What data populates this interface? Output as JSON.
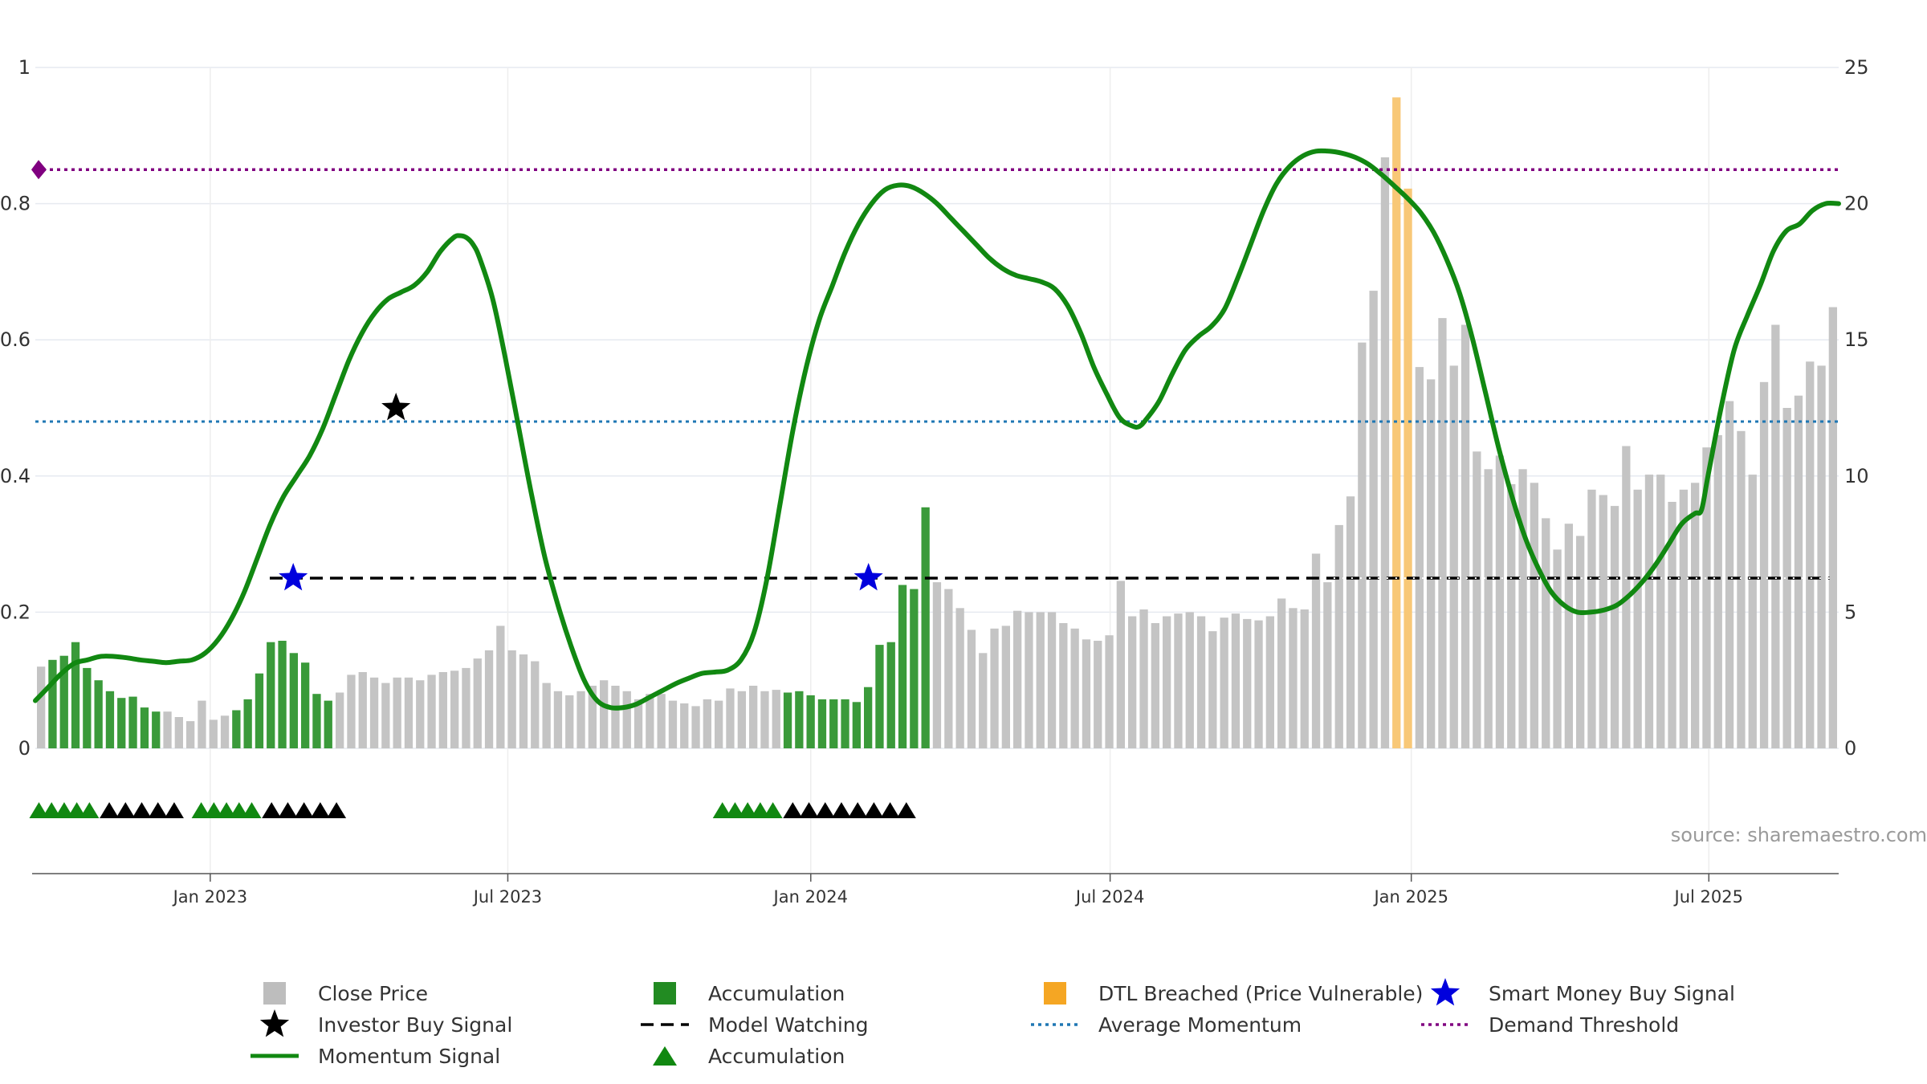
{
  "chart_data": {
    "type": "bar+line",
    "title": "",
    "source": "source: sharemaestro.com",
    "left_axis": {
      "min": 0,
      "max": 1,
      "ticks": [
        "0",
        "0.2",
        "0.4",
        "0.6",
        "0.8",
        "1"
      ]
    },
    "right_axis": {
      "min": 0,
      "max": 25,
      "ticks": [
        "0",
        "5",
        "10",
        "15",
        "20",
        "25"
      ]
    },
    "x_axis": {
      "ticks": [
        "Jan 2023",
        "Jul 2023",
        "Jan 2024",
        "Jul 2024",
        "Jan 2025",
        "Jul 2025"
      ]
    },
    "close_price": [
      3.0,
      3.25,
      3.4,
      3.9,
      2.95,
      2.5,
      2.1,
      1.85,
      1.9,
      1.5,
      1.35,
      1.35,
      1.15,
      1.0,
      1.75,
      1.05,
      1.2,
      1.4,
      1.8,
      2.75,
      3.9,
      3.95,
      3.5,
      3.15,
      2.0,
      1.75,
      2.05,
      2.7,
      2.8,
      2.6,
      2.4,
      2.6,
      2.6,
      2.5,
      2.7,
      2.8,
      2.85,
      2.95,
      3.3,
      3.6,
      4.5,
      3.6,
      3.45,
      3.2,
      2.4,
      2.1,
      1.95,
      2.1,
      2.3,
      2.5,
      2.3,
      2.1,
      1.8,
      2.0,
      2.0,
      1.75,
      1.65,
      1.55,
      1.8,
      1.75,
      2.2,
      2.1,
      2.3,
      2.1,
      2.15,
      2.05,
      2.1,
      1.95,
      1.8,
      1.8,
      1.8,
      1.7,
      2.25,
      3.8,
      3.9,
      6.0,
      5.85,
      8.85,
      6.1,
      5.85,
      5.15,
      4.35,
      3.5,
      4.4,
      4.5,
      5.05,
      5.0,
      5.0,
      5.0,
      4.6,
      4.4,
      4.0,
      3.95,
      4.15,
      6.15,
      4.85,
      5.1,
      4.6,
      4.85,
      4.95,
      5.0,
      4.85,
      4.3,
      4.8,
      4.95,
      4.75,
      4.7,
      4.85,
      5.5,
      5.15,
      5.1,
      7.15,
      6.1,
      8.2,
      9.25,
      14.9,
      16.8,
      21.7,
      23.9,
      20.55,
      14.0,
      13.55,
      15.8,
      14.05,
      15.55,
      10.9,
      10.25,
      10.75,
      9.7,
      10.25,
      9.75,
      8.45,
      7.3,
      8.25,
      7.8,
      9.5,
      9.3,
      8.9,
      11.1,
      9.5,
      10.05,
      10.05,
      9.05,
      9.5,
      9.75,
      11.05,
      11.5,
      12.75,
      11.65,
      10.05,
      13.45,
      15.55,
      12.5,
      12.95,
      14.2,
      14.05,
      16.2
    ],
    "accumulation_bar_ranges": [
      [
        1,
        10
      ],
      [
        17,
        25
      ],
      [
        65,
        77
      ]
    ],
    "dtl_breached_bar_ranges": [
      [
        118,
        119
      ]
    ],
    "momentum_signal": [
      [
        0,
        0.07
      ],
      [
        2,
        0.09
      ],
      [
        4,
        0.11
      ],
      [
        6,
        0.125
      ],
      [
        8,
        0.13
      ],
      [
        10,
        0.135
      ],
      [
        12,
        0.135
      ],
      [
        14,
        0.133
      ],
      [
        16,
        0.13
      ],
      [
        18,
        0.128
      ],
      [
        20,
        0.126
      ],
      [
        22,
        0.128
      ],
      [
        24,
        0.13
      ],
      [
        26,
        0.14
      ],
      [
        28,
        0.16
      ],
      [
        30,
        0.19
      ],
      [
        32,
        0.23
      ],
      [
        34,
        0.28
      ],
      [
        36,
        0.33
      ],
      [
        38,
        0.37
      ],
      [
        40,
        0.4
      ],
      [
        42,
        0.43
      ],
      [
        44,
        0.47
      ],
      [
        46,
        0.52
      ],
      [
        48,
        0.57
      ],
      [
        50,
        0.61
      ],
      [
        52,
        0.64
      ],
      [
        54,
        0.66
      ],
      [
        56,
        0.67
      ],
      [
        58,
        0.68
      ],
      [
        60,
        0.7
      ],
      [
        62,
        0.73
      ],
      [
        64,
        0.75
      ],
      [
        65,
        0.753
      ],
      [
        66,
        0.75
      ],
      [
        67,
        0.74
      ],
      [
        68,
        0.72
      ],
      [
        70,
        0.66
      ],
      [
        72,
        0.57
      ],
      [
        74,
        0.47
      ],
      [
        76,
        0.37
      ],
      [
        78,
        0.28
      ],
      [
        80,
        0.21
      ],
      [
        82,
        0.15
      ],
      [
        84,
        0.1
      ],
      [
        86,
        0.07
      ],
      [
        88,
        0.06
      ],
      [
        90,
        0.06
      ],
      [
        92,
        0.065
      ],
      [
        94,
        0.075
      ],
      [
        96,
        0.085
      ],
      [
        98,
        0.095
      ],
      [
        100,
        0.103
      ],
      [
        102,
        0.11
      ],
      [
        104,
        0.112
      ],
      [
        106,
        0.115
      ],
      [
        108,
        0.13
      ],
      [
        110,
        0.17
      ],
      [
        112,
        0.25
      ],
      [
        114,
        0.36
      ],
      [
        116,
        0.47
      ],
      [
        118,
        0.56
      ],
      [
        120,
        0.63
      ],
      [
        122,
        0.68
      ],
      [
        124,
        0.73
      ],
      [
        126,
        0.77
      ],
      [
        128,
        0.8
      ],
      [
        130,
        0.82
      ],
      [
        132,
        0.827
      ],
      [
        134,
        0.825
      ],
      [
        136,
        0.815
      ],
      [
        138,
        0.8
      ],
      [
        140,
        0.78
      ],
      [
        142,
        0.76
      ],
      [
        144,
        0.74
      ],
      [
        146,
        0.72
      ],
      [
        148,
        0.705
      ],
      [
        150,
        0.695
      ],
      [
        152,
        0.69
      ],
      [
        154,
        0.685
      ],
      [
        156,
        0.675
      ],
      [
        158,
        0.65
      ],
      [
        160,
        0.61
      ],
      [
        162,
        0.56
      ],
      [
        164,
        0.52
      ],
      [
        166,
        0.485
      ],
      [
        168,
        0.473
      ],
      [
        169,
        0.473
      ],
      [
        170,
        0.483
      ],
      [
        172,
        0.51
      ],
      [
        174,
        0.55
      ],
      [
        176,
        0.585
      ],
      [
        178,
        0.605
      ],
      [
        180,
        0.62
      ],
      [
        182,
        0.645
      ],
      [
        184,
        0.69
      ],
      [
        186,
        0.74
      ],
      [
        188,
        0.79
      ],
      [
        190,
        0.83
      ],
      [
        192,
        0.855
      ],
      [
        194,
        0.87
      ],
      [
        196,
        0.877
      ],
      [
        198,
        0.877
      ],
      [
        200,
        0.874
      ],
      [
        202,
        0.868
      ],
      [
        204,
        0.858
      ],
      [
        206,
        0.843
      ],
      [
        208,
        0.826
      ],
      [
        210,
        0.808
      ],
      [
        212,
        0.787
      ],
      [
        214,
        0.758
      ],
      [
        216,
        0.718
      ],
      [
        218,
        0.668
      ],
      [
        220,
        0.6
      ],
      [
        222,
        0.52
      ],
      [
        224,
        0.44
      ],
      [
        226,
        0.37
      ],
      [
        228,
        0.31
      ],
      [
        230,
        0.265
      ],
      [
        232,
        0.23
      ],
      [
        234,
        0.21
      ],
      [
        236,
        0.2
      ],
      [
        238,
        0.2
      ],
      [
        240,
        0.203
      ],
      [
        242,
        0.21
      ],
      [
        244,
        0.225
      ],
      [
        246,
        0.245
      ],
      [
        248,
        0.27
      ],
      [
        250,
        0.3
      ],
      [
        252,
        0.33
      ],
      [
        254,
        0.345
      ],
      [
        255,
        0.35
      ],
      [
        256,
        0.4
      ],
      [
        258,
        0.5
      ],
      [
        260,
        0.585
      ],
      [
        262,
        0.635
      ],
      [
        264,
        0.68
      ],
      [
        266,
        0.73
      ],
      [
        268,
        0.76
      ],
      [
        270,
        0.77
      ],
      [
        272,
        0.79
      ],
      [
        274,
        0.8
      ],
      [
        276,
        0.8
      ]
    ],
    "momentum_x_max": 276,
    "average_momentum": 0.48,
    "demand_threshold": 0.85,
    "model_watching": {
      "level": 0.25,
      "segments": [
        [
          0.13,
          0.21
        ],
        [
          0.215,
          0.995
        ]
      ],
      "dotted_overlay": [
        0.715,
        0.995
      ]
    },
    "smart_money_buy_signals": [
      [
        0.143,
        0.25
      ],
      [
        0.462,
        0.25
      ]
    ],
    "investor_buy_signals": [
      [
        0.2,
        0.5
      ]
    ],
    "accumulation_markers": [
      {
        "green": [
          0.002,
          0.009,
          0.016,
          0.023,
          0.03
        ],
        "black": [
          0.041,
          0.05,
          0.059,
          0.068,
          0.077
        ]
      },
      {
        "green": [
          0.092,
          0.099,
          0.106,
          0.113,
          0.12
        ],
        "black": [
          0.131,
          0.14,
          0.149,
          0.158,
          0.167
        ]
      },
      {
        "green": [
          0.381,
          0.388,
          0.395,
          0.402,
          0.409
        ],
        "black": [
          0.42,
          0.429,
          0.438,
          0.447,
          0.456,
          0.465,
          0.474,
          0.483
        ]
      }
    ],
    "legend": [
      {
        "label": "Close Price",
        "type": "square",
        "color": "#bdbdbd"
      },
      {
        "label": "Accumulation",
        "type": "square",
        "color": "#228b22"
      },
      {
        "label": "DTL Breached (Price Vulnerable)",
        "type": "square",
        "color": "#f5a623"
      },
      {
        "label": "Smart Money Buy Signal",
        "type": "star",
        "color": "#0000dd"
      },
      {
        "label": "Investor Buy Signal",
        "type": "star",
        "color": "#000000"
      },
      {
        "label": "Model Watching",
        "type": "dash",
        "color": "#000000"
      },
      {
        "label": "Average Momentum",
        "type": "dotted",
        "color": "#1f77b4"
      },
      {
        "label": "Demand Threshold",
        "type": "dotted",
        "color": "#800080"
      },
      {
        "label": "Momentum Signal",
        "type": "line",
        "color": "#118811"
      },
      {
        "label": "Accumulation",
        "type": "triangle",
        "color": "#118811"
      }
    ],
    "colors": {
      "price": "#c4c4c4",
      "accumulation": "#3a9a3a",
      "dtl": "#f8c877",
      "momentum": "#118811",
      "average": "#1f77b4",
      "threshold": "#800080",
      "watching": "#000000",
      "smart_money": "#0000dd",
      "investor": "#000000"
    }
  }
}
